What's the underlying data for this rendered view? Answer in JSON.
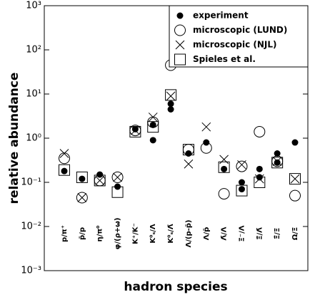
{
  "chart_data": {
    "type": "scatter",
    "y_label": "relative abundance",
    "x_label": "hadron species",
    "log_y": true,
    "legend": "upper right",
    "ylim": [
      0.001,
      1000
    ],
    "yticks": [
      {
        "value": 0.001,
        "label": "10⁻³"
      },
      {
        "value": 0.01,
        "label": "10⁻²"
      },
      {
        "value": 0.1,
        "label": "10⁻¹"
      },
      {
        "value": 1,
        "label": "10⁰"
      },
      {
        "value": 10,
        "label": "10¹"
      },
      {
        "value": 100,
        "label": "10²"
      },
      {
        "value": 1000,
        "label": "10³"
      }
    ],
    "categories": [
      "p/π⁺",
      "p̄/p",
      "η/π⁰",
      "φ/(ρ+ω)",
      "K⁺/K⁻",
      "K⁰ₛ/Λ",
      "K⁰ₛ/Λ̄",
      "Λ/(p-p̄)",
      "Λ/p̄",
      "Λ̄/Λ",
      "Ξ⁻/Λ",
      "Ξ̄/Λ̄",
      "Ξ̄/Ξ",
      "Ω/Ξ"
    ],
    "series": [
      {
        "name": "experiment",
        "marker": "filled-circle",
        "color": "#000000",
        "values": [
          [
            0.18
          ],
          [
            0.12
          ],
          [
            0.15
          ],
          [
            0.08
          ],
          [
            1.6
          ],
          [
            0.9,
            2.0
          ],
          [
            4.5,
            6.0
          ],
          [
            0.45
          ],
          [
            0.8
          ],
          [
            0.2
          ],
          [
            0.1,
            0.07
          ],
          [
            0.2,
            0.13
          ],
          [
            0.45,
            0.28
          ],
          [
            0.8
          ]
        ]
      },
      {
        "name": "microscopic (LUND)",
        "marker": "open-circle",
        "color": "#000000",
        "values": [
          0.35,
          0.045,
          0.11,
          0.13,
          1.5,
          2.3,
          45,
          0.55,
          0.6,
          0.055,
          0.23,
          1.4,
          0.3,
          0.05
        ]
      },
      {
        "name": "microscopic (NJL)",
        "marker": "cross",
        "color": "#000000",
        "values": [
          0.45,
          0.045,
          0.11,
          0.13,
          1.5,
          3.0,
          9,
          0.26,
          1.8,
          0.33,
          0.25,
          0.12,
          0.3,
          0.12
        ]
      },
      {
        "name": "Spieles et al.",
        "marker": "square",
        "color": "#000000",
        "values": [
          0.19,
          0.13,
          0.11,
          0.06,
          1.4,
          1.8,
          9.5,
          0.55,
          null,
          0.22,
          0.065,
          0.1,
          0.28,
          0.12
        ]
      }
    ]
  }
}
